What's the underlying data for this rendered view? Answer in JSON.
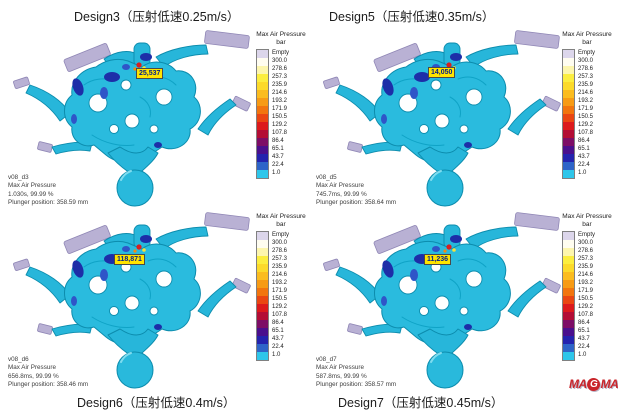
{
  "legend": {
    "title": "Max Air Pressure",
    "unit": "bar",
    "labels": [
      "Empty",
      "300.0",
      "278.6",
      "257.3",
      "235.9",
      "214.6",
      "193.2",
      "171.9",
      "150.5",
      "129.2",
      "107.8",
      "86.4",
      "65.1",
      "43.7",
      "22.4",
      "1.0"
    ],
    "colors": [
      "#dcd6eb",
      "#fffdf0",
      "#fdf6ad",
      "#fcee3f",
      "#fcda2a",
      "#fbbc1f",
      "#f79b15",
      "#f2750e",
      "#ea4612",
      "#dc1a1c",
      "#b30d35",
      "#7d0d66",
      "#4a0f8d",
      "#2423ae",
      "#2e64c8",
      "#2ec6ea"
    ]
  },
  "panels": [
    {
      "title": "Design3（压射低速0.25m/s）",
      "callout": "25,537",
      "info": {
        "model": "v08_d3",
        "result": "Max Air Pressure",
        "time": "1.030s, 99.99 %",
        "plunger": "Plunger position: 358.59 mm"
      }
    },
    {
      "title": "Design5（压射低速0.35m/s）",
      "callout": "14,050",
      "info": {
        "model": "v08_d5",
        "result": "Max Air Pressure",
        "time": "745.7ms, 99.99 %",
        "plunger": "Plunger position: 358.64 mm"
      }
    },
    {
      "title": "Design6（压射低速0.4m/s）",
      "callout": "118,871",
      "info": {
        "model": "v08_d6",
        "result": "Max Air Pressure",
        "time": "656.8ms, 99.99 %",
        "plunger": "Plunger position: 358.46 mm"
      }
    },
    {
      "title": "Design7（压射低速0.45m/s）",
      "callout": "11,236",
      "info": {
        "model": "v08_d7",
        "result": "Max Air Pressure",
        "time": "587.8ms, 99.99 %",
        "plunger": "Plunger position: 358.57 mm"
      }
    }
  ],
  "logo": {
    "part1": "MA",
    "g": "G",
    "part2": "MA"
  },
  "colors": {
    "body_cyan": "#2abbde",
    "empty_lavender": "#b9b1d4",
    "callout_bg": "#ffe400"
  }
}
